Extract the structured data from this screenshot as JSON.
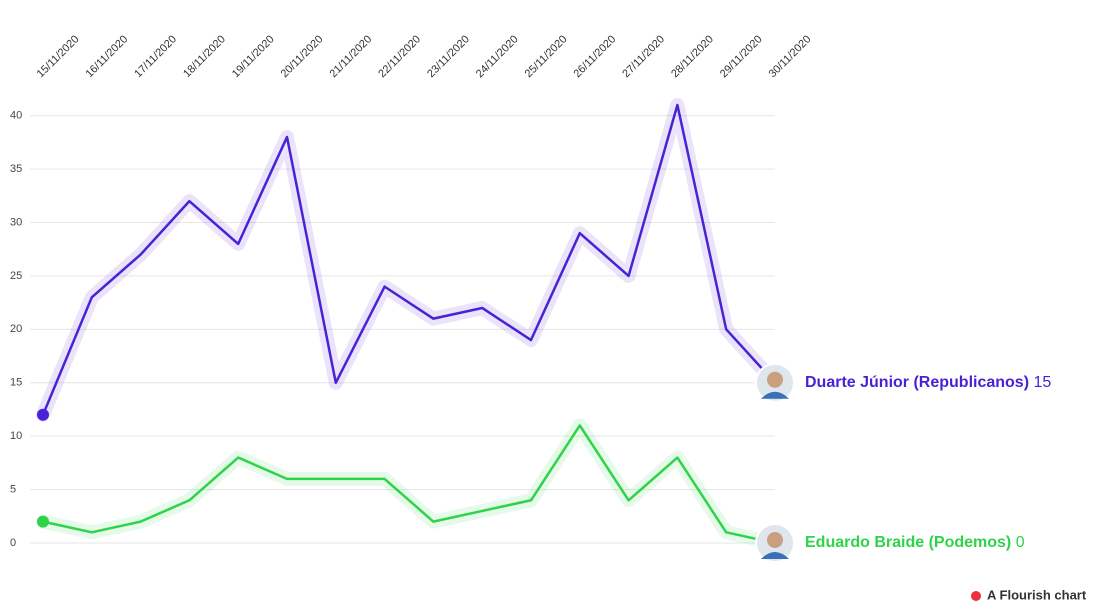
{
  "chart_data": {
    "type": "line",
    "x": [
      "15/11/2020",
      "16/11/2020",
      "17/11/2020",
      "18/11/2020",
      "19/11/2020",
      "20/11/2020",
      "21/11/2020",
      "22/11/2020",
      "23/11/2020",
      "24/11/2020",
      "25/11/2020",
      "26/11/2020",
      "27/11/2020",
      "28/11/2020",
      "29/11/2020",
      "30/11/2020"
    ],
    "series": [
      {
        "name": "Duarte Júnior (Republicanos)",
        "color": "#4a22d6",
        "values": [
          12,
          23,
          27,
          32,
          28,
          38,
          15,
          24,
          21,
          22,
          19,
          29,
          25,
          41,
          20,
          15
        ]
      },
      {
        "name": "Eduardo Braide (Podemos)",
        "color": "#2fd34a",
        "values": [
          2,
          1,
          2,
          4,
          8,
          6,
          6,
          6,
          2,
          3,
          4,
          11,
          4,
          8,
          1,
          0
        ]
      }
    ],
    "ylim": [
      0,
      41
    ],
    "yticks": [
      0,
      5,
      10,
      15,
      20,
      25,
      30,
      35,
      40
    ],
    "grid": true
  },
  "footer": "A Flourish chart"
}
